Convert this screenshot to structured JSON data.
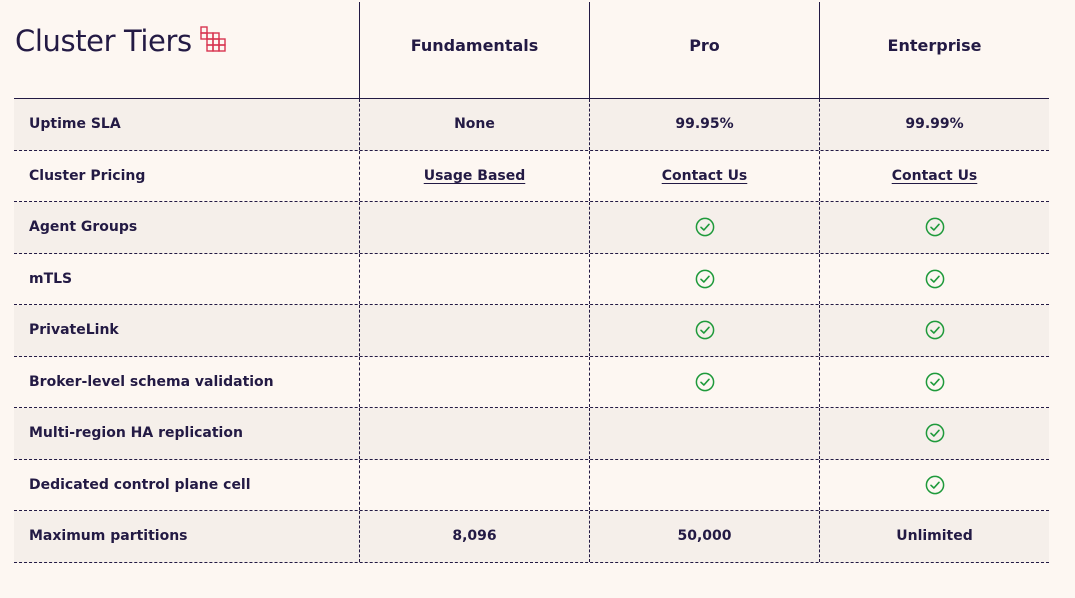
{
  "title": "Cluster Tiers",
  "icon": "grid-icon",
  "accent_color": "#d8344f",
  "check_color": "#1f9a3b",
  "columns": [
    "Fundamentals",
    "Pro",
    "Enterprise"
  ],
  "rows": [
    {
      "feature": "Uptime SLA",
      "values": [
        "None",
        "99.95%",
        "99.99%"
      ]
    },
    {
      "feature": "Cluster Pricing",
      "links": [
        "Usage Based",
        "Contact Us",
        "Contact Us"
      ]
    },
    {
      "feature": "Agent Groups",
      "checks": [
        false,
        true,
        true
      ]
    },
    {
      "feature": "mTLS",
      "checks": [
        false,
        true,
        true
      ]
    },
    {
      "feature": "PrivateLink",
      "checks": [
        false,
        true,
        true
      ]
    },
    {
      "feature": "Broker-level schema validation",
      "checks": [
        false,
        true,
        true
      ]
    },
    {
      "feature": "Multi-region HA replication",
      "checks": [
        false,
        false,
        true
      ]
    },
    {
      "feature": "Dedicated control plane cell",
      "checks": [
        false,
        false,
        true
      ]
    },
    {
      "feature": "Maximum partitions",
      "values": [
        "8,096",
        "50,000",
        "Unlimited"
      ]
    }
  ]
}
